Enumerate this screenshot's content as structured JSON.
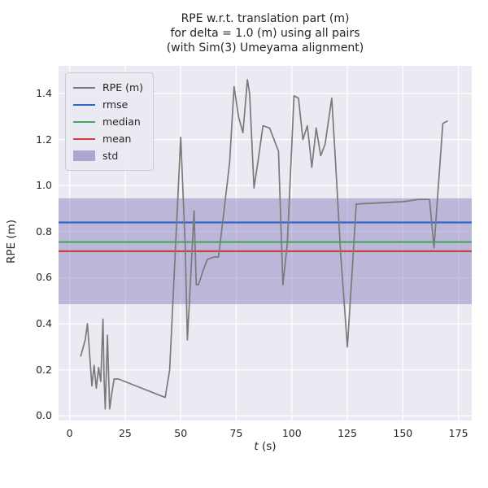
{
  "title": {
    "line1": "RPE w.r.t. translation part (m)",
    "line2": "for delta = 1.0 (m) using all pairs",
    "line3": "(with Sim(3) Umeyama alignment)"
  },
  "axes": {
    "ylabel": "RPE (m)",
    "xlabel_var": "t",
    "xlabel_unit": " (s)"
  },
  "colors": {
    "figure_bg": "#ffffff",
    "plot_bg": "#eaeaf2",
    "grid": "#ffffff",
    "text": "#262626",
    "rpe_line": "#7a7a7a",
    "rmse_line": "#3465c8",
    "median_line": "#44a55f",
    "mean_line": "#cc4044",
    "std_band": "#8678b8"
  },
  "chart_data": {
    "type": "line",
    "title": "RPE w.r.t. translation part (m)\nfor delta = 1.0 (m) using all pairs\n(with Sim(3) Umeyama alignment)",
    "xlabel": "t (s)",
    "ylabel": "RPE (m)",
    "grid": true,
    "legend_position": "upper left",
    "xlim": [
      -5,
      181
    ],
    "ylim": [
      -0.02,
      1.52
    ],
    "xticks": {
      "values": [
        0,
        25,
        50,
        75,
        100,
        125,
        150,
        175
      ],
      "labels": [
        "0",
        "25",
        "50",
        "75",
        "100",
        "125",
        "150",
        "175"
      ]
    },
    "yticks": {
      "values": [
        0.0,
        0.2,
        0.4,
        0.6,
        0.8,
        1.0,
        1.2,
        1.4
      ],
      "labels": [
        "0.0",
        "0.2",
        "0.4",
        "0.6",
        "0.8",
        "1.0",
        "1.2",
        "1.4"
      ]
    },
    "series": [
      {
        "name": "RPE (m)",
        "kind": "line",
        "color": "#7a7a7a",
        "x": [
          5,
          7,
          8,
          10,
          11,
          12,
          13,
          14,
          15,
          15.5,
          16,
          17,
          18,
          19,
          20,
          22,
          43,
          45,
          47,
          50,
          52,
          53,
          55,
          56,
          57,
          58,
          60,
          62,
          65,
          67,
          69,
          72,
          74,
          76,
          78,
          80,
          81,
          83,
          85,
          87,
          90,
          92,
          94,
          96,
          98,
          101,
          103,
          105,
          107,
          109,
          111,
          113,
          115,
          118,
          120,
          122,
          125,
          127,
          129,
          150,
          157,
          162,
          164,
          166,
          168,
          170
        ],
        "y": [
          0.26,
          0.33,
          0.4,
          0.13,
          0.22,
          0.12,
          0.21,
          0.15,
          0.42,
          0.16,
          0.03,
          0.35,
          0.03,
          0.1,
          0.16,
          0.16,
          0.08,
          0.2,
          0.6,
          1.21,
          0.74,
          0.33,
          0.7,
          0.89,
          0.57,
          0.57,
          0.63,
          0.68,
          0.69,
          0.69,
          0.85,
          1.1,
          1.43,
          1.3,
          1.23,
          1.46,
          1.4,
          0.99,
          1.12,
          1.26,
          1.25,
          1.2,
          1.15,
          0.57,
          0.75,
          1.39,
          1.38,
          1.2,
          1.26,
          1.08,
          1.25,
          1.13,
          1.18,
          1.38,
          1.05,
          0.7,
          0.3,
          0.6,
          0.92,
          0.93,
          0.94,
          0.94,
          0.73,
          1.0,
          1.27,
          1.28
        ]
      },
      {
        "name": "rmse",
        "kind": "hline",
        "color": "#3465c8",
        "value": 0.84
      },
      {
        "name": "median",
        "kind": "hline",
        "color": "#44a55f",
        "value": 0.755
      },
      {
        "name": "mean",
        "kind": "hline",
        "color": "#cc4044",
        "value": 0.715
      },
      {
        "name": "std",
        "kind": "band",
        "color": "#8678b8",
        "opacity": 0.45,
        "low": 0.485,
        "high": 0.945
      }
    ]
  }
}
